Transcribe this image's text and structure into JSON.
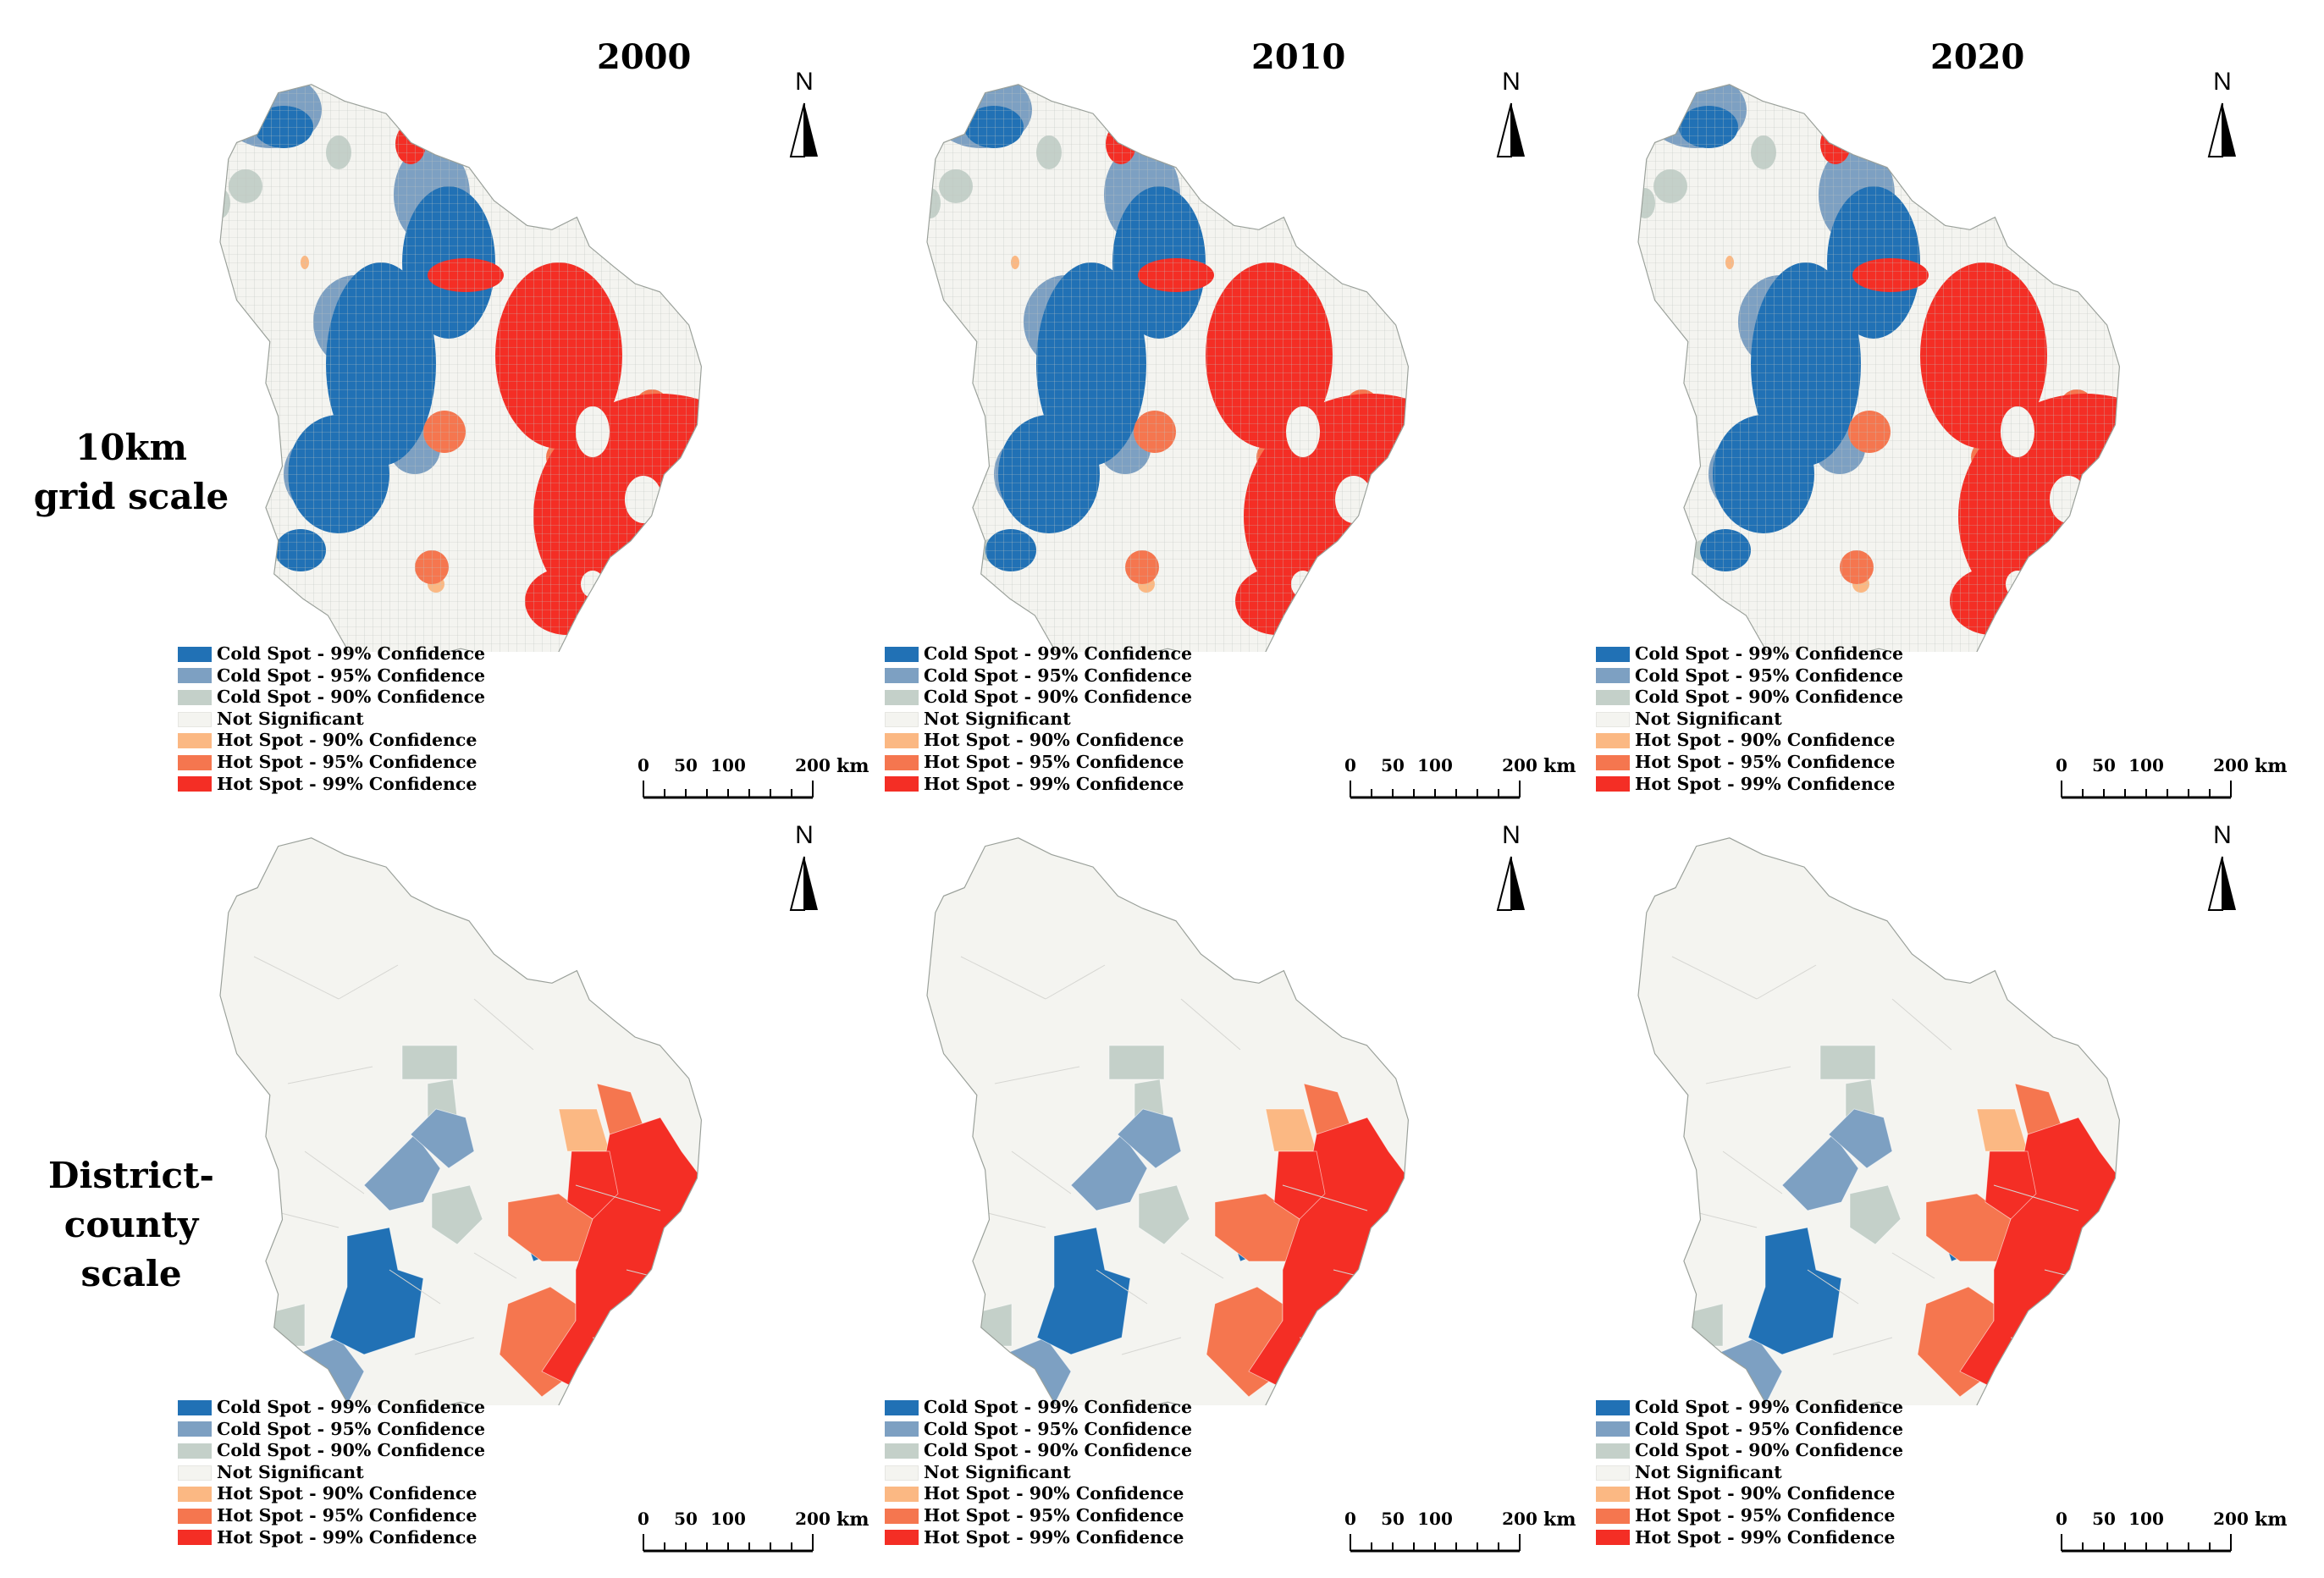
{
  "years": [
    "2000",
    "2010",
    "2020"
  ],
  "row_labels": {
    "grid": [
      "10km",
      "grid scale"
    ],
    "district": [
      "District-county",
      "scale"
    ]
  },
  "north_label": "N",
  "scale": {
    "ticks": [
      "0",
      "50",
      "100",
      "200"
    ],
    "unit": "km"
  },
  "legend": [
    {
      "label": "Cold Spot - 99% Confidence",
      "color": "#2171b5"
    },
    {
      "label": "Cold Spot - 95% Confidence",
      "color": "#7da0c2"
    },
    {
      "label": "Cold Spot - 90% Confidence",
      "color": "#c4d0c9"
    },
    {
      "label": "Not Significant",
      "color": "#f4f4f0"
    },
    {
      "label": "Hot Spot - 90% Confidence",
      "color": "#fbb883"
    },
    {
      "label": "Hot Spot - 95% Confidence",
      "color": "#f5764f"
    },
    {
      "label": "Hot Spot - 99% Confidence",
      "color": "#f42e25"
    }
  ]
}
